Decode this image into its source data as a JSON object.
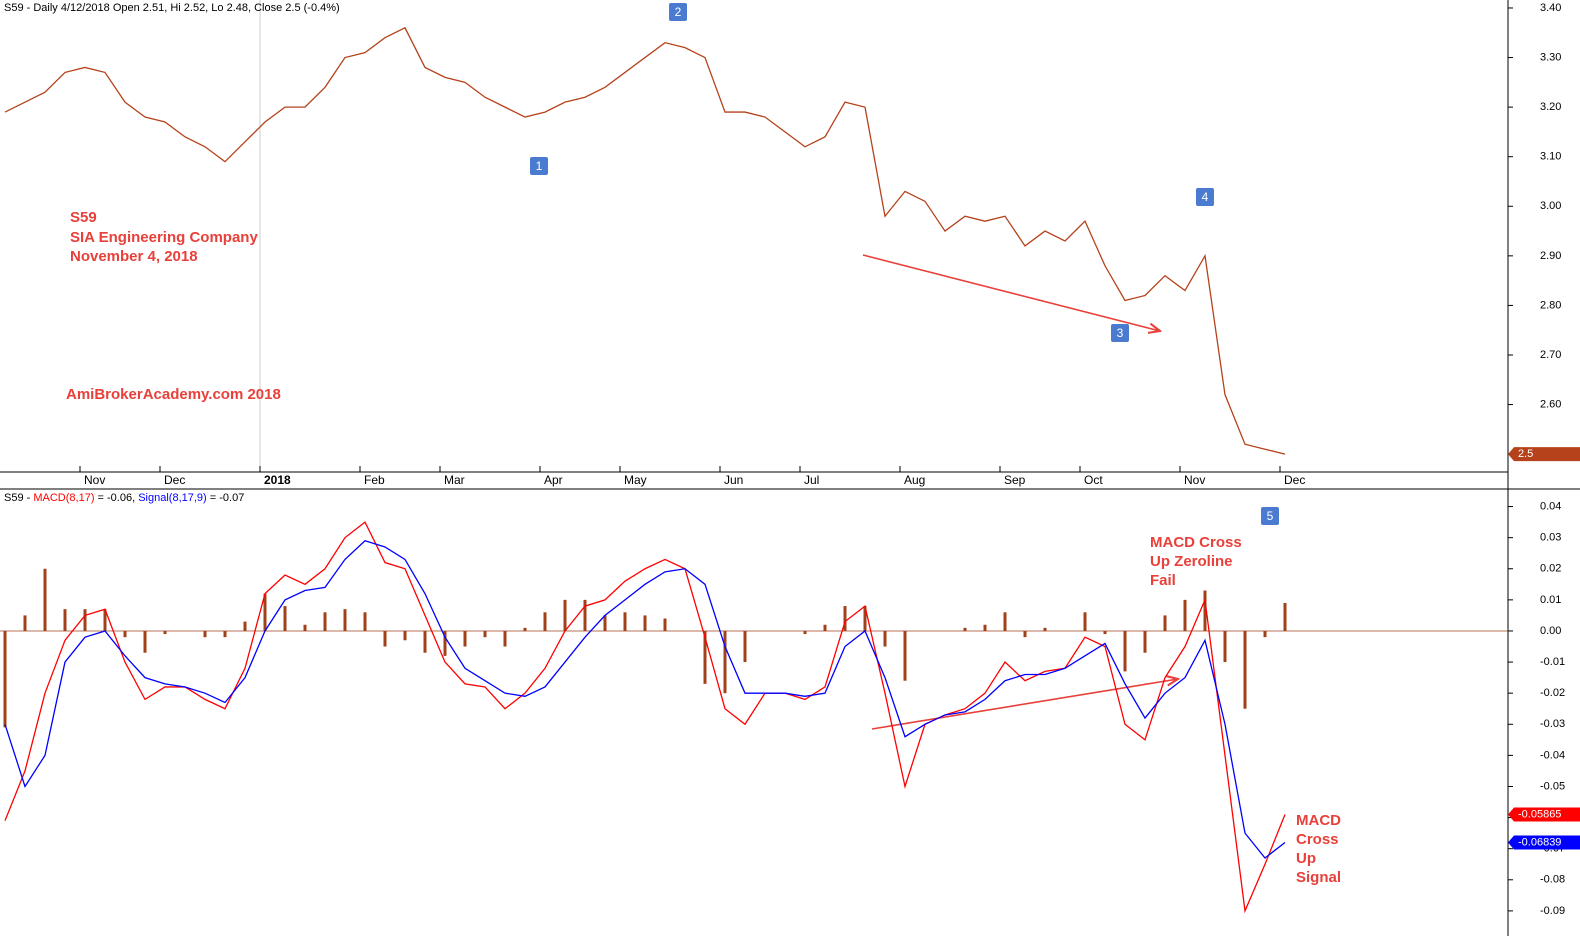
{
  "chart_data": [
    {
      "type": "line",
      "title": "S59 - Daily 4/12/2018 Open 2.51, Hi 2.52, Lo 2.48, Close 2.5 (-0.4%)",
      "categories": [
        null,
        null,
        null,
        null,
        "Nov",
        null,
        null,
        null,
        "Dec",
        null,
        null,
        null,
        null,
        "2018",
        null,
        null,
        null,
        null,
        "Feb",
        null,
        null,
        null,
        "Mar",
        null,
        null,
        null,
        null,
        "Apr",
        null,
        null,
        null,
        "May",
        null,
        null,
        null,
        null,
        "Jun",
        null,
        null,
        null,
        "Jul",
        null,
        null,
        null,
        null,
        "Aug",
        null,
        null,
        null,
        null,
        "Sep",
        null,
        null,
        null,
        "Oct",
        null,
        null,
        null,
        null,
        "Nov",
        null,
        null,
        null,
        null,
        "Dec"
      ],
      "values": [
        3.19,
        3.21,
        3.23,
        3.27,
        3.28,
        3.27,
        3.21,
        3.18,
        3.17,
        3.14,
        3.12,
        3.09,
        3.13,
        3.17,
        3.2,
        3.2,
        3.24,
        3.3,
        3.31,
        3.34,
        3.36,
        3.28,
        3.26,
        3.25,
        3.22,
        3.2,
        3.18,
        3.19,
        3.21,
        3.22,
        3.24,
        3.27,
        3.3,
        3.33,
        3.32,
        3.3,
        3.19,
        3.19,
        3.18,
        3.15,
        3.12,
        3.14,
        3.21,
        3.2,
        2.98,
        3.03,
        3.01,
        2.95,
        2.98,
        2.97,
        2.98,
        2.92,
        2.95,
        2.93,
        2.97,
        2.88,
        2.81,
        2.82,
        2.86,
        2.83,
        2.9,
        2.62,
        2.52,
        2.51,
        2.5
      ],
      "color": "#b5421b",
      "last_label": "2.5",
      "ylim": [
        2.464,
        3.406
      ],
      "yticks": [
        {
          "value": 2.5,
          "label": "2.50"
        },
        {
          "value": 2.6,
          "label": "2.60"
        },
        {
          "value": 2.7,
          "label": "2.70"
        },
        {
          "value": 2.8,
          "label": "2.80"
        },
        {
          "value": 2.9,
          "label": "2.90"
        },
        {
          "value": 3.0,
          "label": "3.00"
        },
        {
          "value": 3.1,
          "label": "3.10"
        },
        {
          "value": 3.2,
          "label": "3.20"
        },
        {
          "value": 3.3,
          "label": "3.30"
        },
        {
          "value": 3.4,
          "label": "3.40"
        }
      ],
      "annotations": [
        "S59",
        "SIA Engineering Company",
        "November 4, 2018",
        "AmiBrokerAcademy.com  2018"
      ],
      "markers": [
        "1",
        "2",
        "3",
        "4"
      ]
    },
    {
      "type": "macd",
      "title_prefix": "S59 - ",
      "series": [
        {
          "name": "MACD(8,17)",
          "readout": " = -0.06, ",
          "color": "#ff0000",
          "last_label": "-0.05865",
          "values": [
            -0.061,
            -0.045,
            -0.02,
            -0.003,
            0.005,
            0.007,
            -0.01,
            -0.022,
            -0.018,
            -0.018,
            -0.022,
            -0.025,
            -0.012,
            0.012,
            0.018,
            0.015,
            0.02,
            0.03,
            0.035,
            0.022,
            0.02,
            0.005,
            -0.01,
            -0.017,
            -0.018,
            -0.025,
            -0.02,
            -0.012,
            0.0,
            0.008,
            0.01,
            0.016,
            0.02,
            0.023,
            0.02,
            -0.002,
            -0.025,
            -0.03,
            -0.02,
            -0.02,
            -0.022,
            -0.018,
            0.003,
            0.008,
            -0.02,
            -0.05,
            -0.03,
            -0.027,
            -0.025,
            -0.02,
            -0.01,
            -0.016,
            -0.013,
            -0.012,
            -0.002,
            -0.005,
            -0.03,
            -0.035,
            -0.015,
            -0.005,
            0.01,
            -0.04,
            -0.09,
            -0.075,
            -0.059
          ]
        },
        {
          "name": "Signal(8,17,9)",
          "readout": " = -0.07",
          "color": "#0000ff",
          "last_label": "-0.06839",
          "values": [
            -0.03,
            -0.05,
            -0.04,
            -0.01,
            -0.002,
            0.0,
            -0.008,
            -0.015,
            -0.017,
            -0.018,
            -0.02,
            -0.023,
            -0.015,
            0.0,
            0.01,
            0.013,
            0.014,
            0.023,
            0.029,
            0.027,
            0.023,
            0.012,
            -0.002,
            -0.012,
            -0.016,
            -0.02,
            -0.021,
            -0.018,
            -0.01,
            -0.002,
            0.005,
            0.01,
            0.015,
            0.019,
            0.02,
            0.015,
            -0.005,
            -0.02,
            -0.02,
            -0.02,
            -0.021,
            -0.02,
            -0.005,
            0.0,
            -0.015,
            -0.034,
            -0.03,
            -0.027,
            -0.026,
            -0.022,
            -0.016,
            -0.014,
            -0.014,
            -0.012,
            -0.008,
            -0.004,
            -0.017,
            -0.028,
            -0.02,
            -0.015,
            -0.003,
            -0.03,
            -0.065,
            -0.073,
            -0.068
          ]
        }
      ],
      "histogram": {
        "color": "#a0411b",
        "values": [
          -0.031,
          0.005,
          0.02,
          0.007,
          0.007,
          0.007,
          -0.002,
          -0.007,
          -0.001,
          0,
          -0.002,
          -0.002,
          0.003,
          0.012,
          0.008,
          0.002,
          0.006,
          0.007,
          0.006,
          -0.005,
          -0.003,
          -0.007,
          -0.008,
          -0.005,
          -0.002,
          -0.005,
          0.001,
          0.006,
          0.01,
          0.01,
          0.005,
          0.006,
          0.005,
          0.004,
          0,
          -0.017,
          -0.02,
          -0.01,
          0,
          0,
          -0.001,
          0.002,
          0.008,
          0.008,
          -0.005,
          -0.016,
          0,
          0,
          0.001,
          0.002,
          0.006,
          -0.002,
          0.001,
          0,
          0.006,
          -0.001,
          -0.013,
          -0.007,
          0.005,
          0.01,
          0.013,
          -0.01,
          -0.025,
          -0.002,
          0.009
        ]
      },
      "ylim": [
        -0.0955,
        0.045
      ],
      "yticks": [
        -0.09,
        -0.08,
        -0.07,
        -0.06,
        -0.05,
        -0.04,
        -0.03,
        -0.02,
        -0.01,
        {
          "value": 0,
          "label": "0.00"
        },
        0.01,
        0.02,
        0.03,
        0.04
      ],
      "annotations": [
        "MACD Cross",
        "Up Zeroline",
        "Fail",
        "MACD",
        "Cross",
        "Up",
        "Signal"
      ],
      "markers": [
        "5"
      ]
    }
  ]
}
